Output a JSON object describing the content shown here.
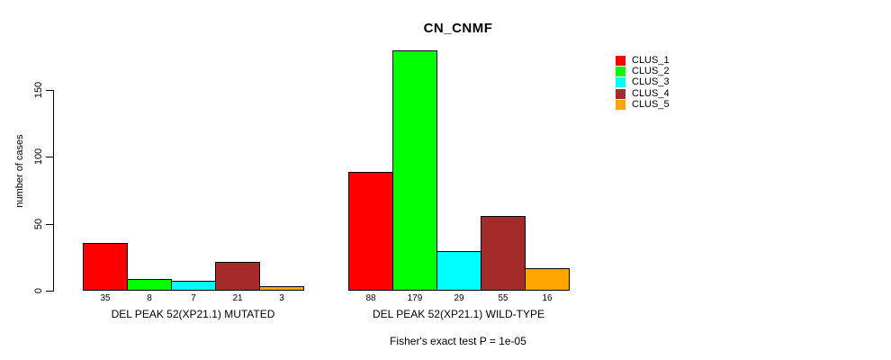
{
  "chart_data": {
    "type": "bar",
    "title": "CN_CNMF",
    "ylabel": "number of cases",
    "xlabel": "",
    "footer": "Fisher's exact test P = 1e-05",
    "ylim": [
      0,
      150
    ],
    "yticks": [
      0,
      50,
      100,
      150
    ],
    "grid": false,
    "legend_position": "right",
    "background_color": "#FFFFFF",
    "bar_border_color": "#000000",
    "series": [
      {
        "name": "CLUS_1",
        "color": "#FF0000"
      },
      {
        "name": "CLUS_2",
        "color": "#00FF00"
      },
      {
        "name": "CLUS_3",
        "color": "#00FFFF"
      },
      {
        "name": "CLUS_4",
        "color": "#A52A2A"
      },
      {
        "name": "CLUS_5",
        "color": "#FFA500"
      }
    ],
    "groups": [
      {
        "label": "DEL PEAK 52(XP21.1) MUTATED",
        "values": [
          35,
          8,
          7,
          21,
          3
        ]
      },
      {
        "label": "DEL PEAK 52(XP21.1) WILD-TYPE",
        "values": [
          88,
          179,
          29,
          55,
          16
        ]
      }
    ]
  }
}
